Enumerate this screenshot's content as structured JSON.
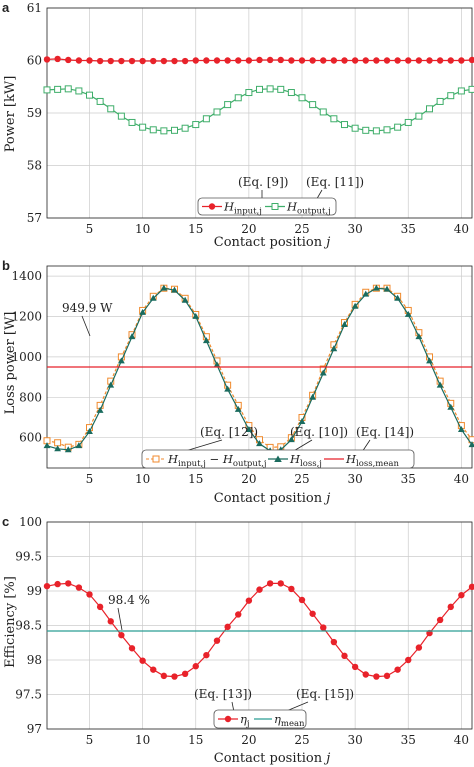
{
  "colors": {
    "red": "#e8222a",
    "green": "#3fae6a",
    "orange": "#f08a2c",
    "teal_dark": "#1a6b5e",
    "teal": "#2a9d95",
    "grid": "#cccccc"
  },
  "chart_data": [
    {
      "panel_label": "a",
      "type": "line",
      "xlabel": "Contact position j",
      "ylabel": "Power [kW]",
      "xlim": [
        1,
        41
      ],
      "ylim": [
        57,
        61
      ],
      "xticks": [
        "5",
        "10",
        "15",
        "20",
        "25",
        "30",
        "35",
        "40"
      ],
      "yticks": [
        "57",
        "58",
        "59",
        "60",
        "61"
      ],
      "grid": true,
      "x": [
        1,
        2,
        3,
        4,
        5,
        6,
        7,
        8,
        9,
        10,
        11,
        12,
        13,
        14,
        15,
        16,
        17,
        18,
        19,
        20,
        21,
        22,
        23,
        24,
        25,
        26,
        27,
        28,
        29,
        30,
        31,
        32,
        33,
        34,
        35,
        36,
        37,
        38,
        39,
        40,
        41
      ],
      "series": [
        {
          "name": "H_input,j",
          "legend_main": "H",
          "legend_sub": "input,j",
          "color": "#e8222a",
          "marker": "circle",
          "values": [
            60.02,
            60.03,
            60.01,
            60.0,
            60.0,
            59.99,
            59.99,
            59.99,
            59.99,
            59.99,
            59.99,
            59.99,
            59.99,
            59.99,
            60.0,
            60.0,
            60.0,
            60.0,
            60.0,
            60.0,
            60.01,
            60.01,
            60.01,
            60.0,
            60.0,
            60.0,
            60.0,
            60.0,
            60.0,
            60.0,
            60.0,
            60.0,
            60.0,
            60.0,
            60.0,
            60.0,
            60.0,
            60.0,
            60.0,
            60.0,
            60.01
          ]
        },
        {
          "name": "H_output,j",
          "legend_main": "H",
          "legend_sub": "output,j",
          "color": "#3fae6a",
          "marker": "square-open",
          "values": [
            59.44,
            59.45,
            59.46,
            59.42,
            59.34,
            59.22,
            59.08,
            58.94,
            58.82,
            58.73,
            58.68,
            58.66,
            58.67,
            58.71,
            58.78,
            58.89,
            59.02,
            59.16,
            59.29,
            59.39,
            59.45,
            59.46,
            59.45,
            59.39,
            59.29,
            59.16,
            59.02,
            58.89,
            58.78,
            58.71,
            58.67,
            58.66,
            58.68,
            58.73,
            58.82,
            58.94,
            59.08,
            59.22,
            59.33,
            59.42,
            59.45
          ]
        }
      ],
      "annotations": [
        "(Eq. [9])",
        "(Eq. [11])"
      ]
    },
    {
      "panel_label": "b",
      "type": "line",
      "xlabel": "Contact position j",
      "ylabel": "Loss power [W]",
      "xlim": [
        1,
        41
      ],
      "ylim": [
        450,
        1450
      ],
      "xticks": [
        "5",
        "10",
        "15",
        "20",
        "25",
        "30",
        "35",
        "40"
      ],
      "ytick_values": [
        600,
        800,
        1000,
        1200,
        1400
      ],
      "yticks": [
        "600",
        "800",
        "1000",
        "1200",
        "1400"
      ],
      "grid": true,
      "x": [
        1,
        2,
        3,
        4,
        5,
        6,
        7,
        8,
        9,
        10,
        11,
        12,
        13,
        14,
        15,
        16,
        17,
        18,
        19,
        20,
        21,
        22,
        23,
        24,
        25,
        26,
        27,
        28,
        29,
        30,
        31,
        32,
        33,
        34,
        35,
        36,
        37,
        38,
        39,
        40,
        41
      ],
      "series": [
        {
          "name": "H_input,j - H_output,j",
          "legend_main": "H",
          "legend_sub": "input,j",
          "legend_main2": "H",
          "legend_sub2": "output,j",
          "color": "#f08a2c",
          "marker": "square-open",
          "dashed": true,
          "values": [
            585,
            575,
            553,
            567,
            650,
            760,
            880,
            1000,
            1110,
            1230,
            1300,
            1340,
            1335,
            1290,
            1210,
            1100,
            980,
            860,
            760,
            660,
            590,
            552,
            555,
            600,
            700,
            810,
            940,
            1060,
            1170,
            1260,
            1320,
            1340,
            1340,
            1300,
            1230,
            1120,
            1000,
            880,
            770,
            660,
            590
          ]
        },
        {
          "name": "H_loss,j",
          "legend_main": "H",
          "legend_sub": "loss,j",
          "color": "#1a6b5e",
          "marker": "triangle",
          "values": [
            560,
            545,
            540,
            560,
            630,
            735,
            860,
            980,
            1100,
            1220,
            1290,
            1340,
            1330,
            1280,
            1200,
            1080,
            960,
            840,
            740,
            640,
            570,
            535,
            540,
            590,
            680,
            800,
            920,
            1040,
            1160,
            1250,
            1310,
            1340,
            1335,
            1290,
            1210,
            1100,
            980,
            860,
            750,
            640,
            565
          ]
        },
        {
          "name": "H_loss,mean",
          "legend_main": "H",
          "legend_sub": "loss,mean",
          "color": "#e8222a",
          "marker": "none",
          "value": 949.9
        }
      ],
      "annotations": [
        "949.9 W",
        "(Eq. [12])",
        "(Eq. [10])",
        "(Eq. [14])"
      ]
    },
    {
      "panel_label": "c",
      "type": "line",
      "xlabel": "Contact position j",
      "ylabel": "Efficiency [%]",
      "xlim": [
        1,
        41
      ],
      "ylim": [
        97,
        100
      ],
      "xticks": [
        "5",
        "10",
        "15",
        "20",
        "25",
        "30",
        "35",
        "40"
      ],
      "yticks": [
        "97",
        "97.5",
        "98",
        "98.5",
        "99",
        "99.5",
        "100"
      ],
      "ytick_values": [
        97,
        97.5,
        98,
        98.5,
        99,
        99.5,
        100
      ],
      "grid": true,
      "x": [
        1,
        2,
        3,
        4,
        5,
        6,
        7,
        8,
        9,
        10,
        11,
        12,
        13,
        14,
        15,
        16,
        17,
        18,
        19,
        20,
        21,
        22,
        23,
        24,
        25,
        26,
        27,
        28,
        29,
        30,
        31,
        32,
        33,
        34,
        35,
        36,
        37,
        38,
        39,
        40,
        41
      ],
      "series": [
        {
          "name": "η_j",
          "legend_main": "η",
          "legend_sub": "j",
          "color": "#e8222a",
          "marker": "circle",
          "values": [
            99.07,
            99.1,
            99.11,
            99.05,
            98.95,
            98.77,
            98.56,
            98.36,
            98.17,
            97.99,
            97.86,
            97.77,
            97.76,
            97.8,
            97.91,
            98.07,
            98.28,
            98.48,
            98.66,
            98.86,
            99.02,
            99.11,
            99.11,
            99.03,
            98.87,
            98.67,
            98.47,
            98.26,
            98.06,
            97.9,
            97.79,
            97.76,
            97.77,
            97.86,
            98.0,
            98.18,
            98.39,
            98.58,
            98.77,
            98.94,
            99.06
          ]
        },
        {
          "name": "η_mean",
          "legend_main": "η",
          "legend_sub": "mean",
          "color": "#2a9d95",
          "marker": "none",
          "value": 98.42
        }
      ],
      "annotations": [
        "98.4 %",
        "(Eq. [13])",
        "(Eq. [15])"
      ]
    }
  ]
}
